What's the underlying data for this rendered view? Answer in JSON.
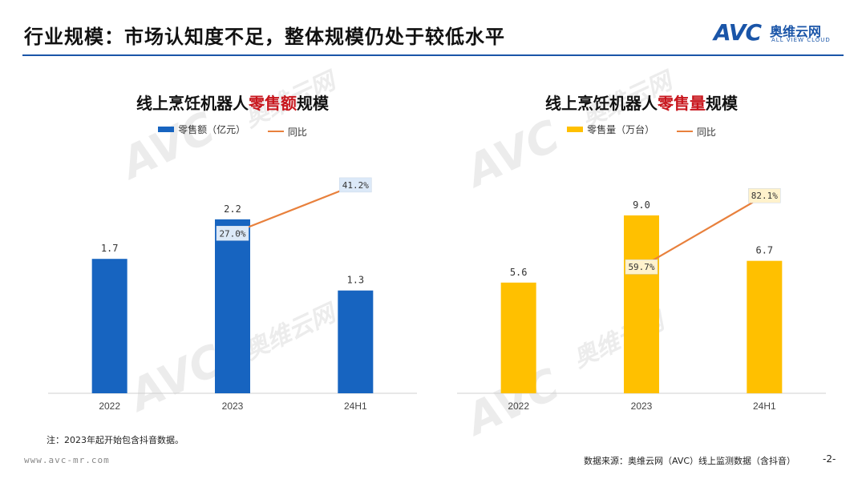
{
  "page": {
    "title": "行业规模：市场认知度不足，整体规模仍处于较低水平",
    "footnote": "注：2023年起开始包含抖音数据。",
    "website": "www.avc-mr.com",
    "source": "数据来源：奥维云网（AVC）线上监测数据（含抖音）",
    "page_number": "-2-"
  },
  "logo": {
    "mark": "AVC",
    "name_cn": "奥维云网",
    "name_en": "ALL VIEW CLOUD"
  },
  "chart_data": [
    {
      "type": "bar",
      "title_pre": "线上烹饪机器人",
      "title_highlight": "零售额",
      "title_post": "规模",
      "categories": [
        "2022",
        "2023",
        "24H1"
      ],
      "bar_series": {
        "name": "零售额（亿元）",
        "color": "#1764c0",
        "values": [
          1.7,
          2.2,
          1.3
        ],
        "labels": [
          "1.7",
          "2.2",
          "1.3"
        ]
      },
      "line_series": {
        "name": "同比",
        "color": "#e8803c",
        "points": [
          {
            "category": "2023",
            "value": 27.0,
            "label": "27.0%"
          },
          {
            "category": "24H1",
            "value": 41.2,
            "label": "41.2%"
          }
        ],
        "label_bg": "#dce9f8"
      },
      "bar_ylim": [
        0,
        3.1
      ],
      "line_ylim": [
        -20,
        52
      ]
    },
    {
      "type": "bar",
      "title_pre": "线上烹饪机器人",
      "title_highlight": "零售量",
      "title_post": "规模",
      "categories": [
        "2022",
        "2023",
        "24H1"
      ],
      "bar_series": {
        "name": "零售量（万台）",
        "color": "#ffc000",
        "values": [
          5.6,
          9.0,
          6.7
        ],
        "labels": [
          "5.6",
          "9.0",
          "6.7"
        ]
      },
      "line_series": {
        "name": "同比",
        "color": "#e8803c",
        "points": [
          {
            "category": "2023",
            "value": 59.7,
            "label": "59.7%"
          },
          {
            "category": "24H1",
            "value": 82.1,
            "label": "82.1%"
          }
        ],
        "label_bg": "#fff2cc"
      },
      "bar_ylim": [
        0,
        12.4
      ],
      "line_ylim": [
        20,
        97
      ]
    }
  ]
}
